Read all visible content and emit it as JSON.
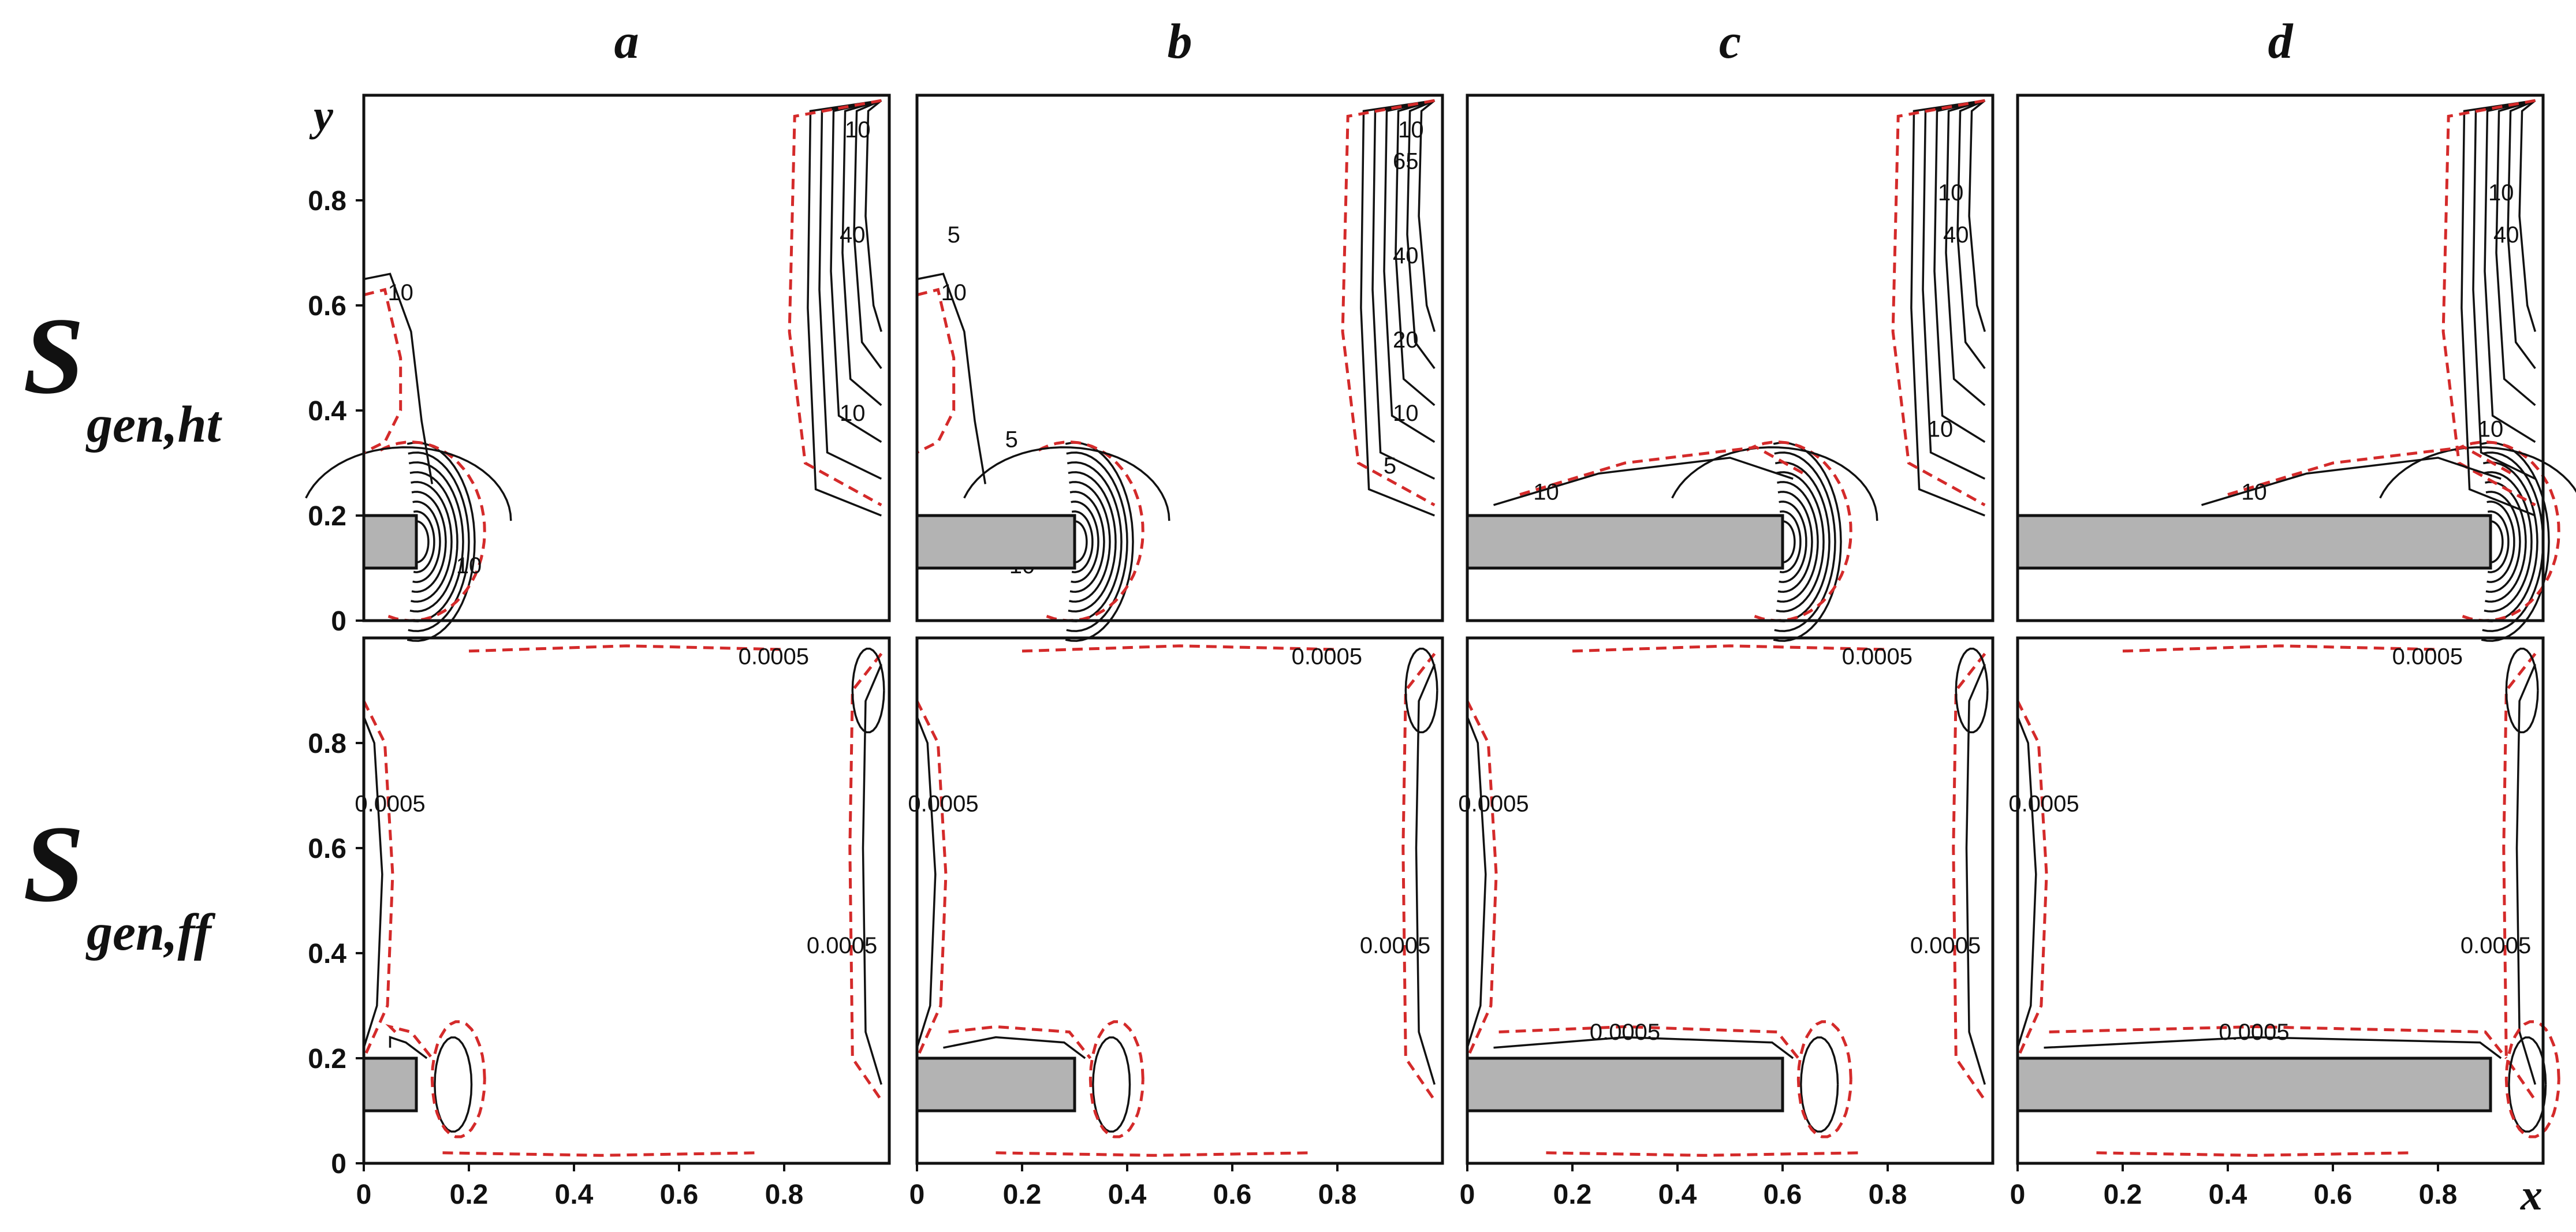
{
  "columns": [
    "a",
    "b",
    "c",
    "d"
  ],
  "rows": [
    {
      "symbol": "S",
      "subscript": "gen,ht",
      "contour_labels": [
        "5",
        "10",
        "20",
        "40",
        "65"
      ]
    },
    {
      "symbol": "S",
      "subscript": "gen,ff",
      "contour_labels": [
        "0.0005"
      ]
    }
  ],
  "axes": {
    "x_name": "x",
    "y_name": "y",
    "x_ticks": [
      "0",
      "0.2",
      "0.4",
      "0.6",
      "0.8"
    ],
    "y_ticks": [
      "0",
      "0.2",
      "0.4",
      "0.6",
      "0.8"
    ]
  },
  "block_lengths": [
    0.1,
    0.3,
    0.6,
    0.9
  ],
  "block_y_range": [
    0.1,
    0.2
  ],
  "domain": [
    0,
    1
  ],
  "colors": {
    "solid_isolines": "#111111",
    "dashed_isolines": "#d42a2a",
    "block_fill": "#b3b3b3"
  }
}
